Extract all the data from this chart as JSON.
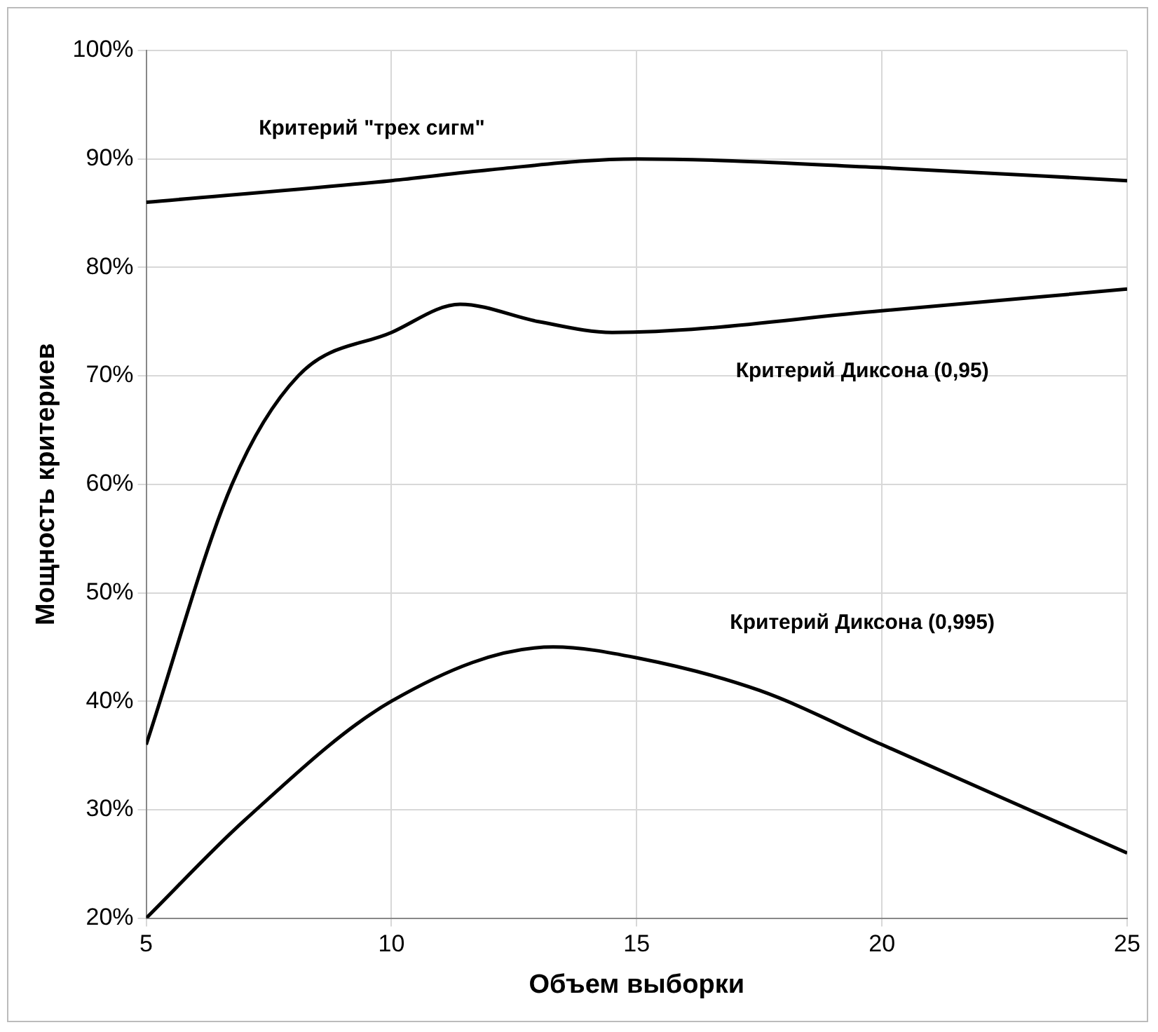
{
  "chart_data": {
    "type": "line",
    "xlabel": "Объем выборки",
    "ylabel": "Мощность критериев",
    "xlim": [
      5,
      25
    ],
    "xticks": [
      5,
      10,
      15,
      20,
      25
    ],
    "ylim": [
      0.2,
      1
    ],
    "yticks": [
      {
        "value": 0.2,
        "label": "20%"
      },
      {
        "value": 0.3,
        "label": "30%"
      },
      {
        "value": 0.4,
        "label": "40%"
      },
      {
        "value": 0.5,
        "label": "50%"
      },
      {
        "value": 0.6,
        "label": "60%"
      },
      {
        "value": 0.7,
        "label": "70%"
      },
      {
        "value": 0.8,
        "label": "80%"
      },
      {
        "value": 0.9,
        "label": "90%"
      },
      {
        "value": 1,
        "label": "100%"
      }
    ],
    "grid": true,
    "legend": false,
    "marker": "none",
    "line_style": "solid",
    "series": [
      {
        "name": "Критерий \"трех сигм\"",
        "color": "#000000",
        "x": [
          5,
          10,
          12,
          15,
          20,
          25
        ],
        "values": [
          0.86,
          0.88,
          0.89,
          0.9,
          0.892,
          0.88
        ]
      },
      {
        "name": "Критерий Диксона (0,95)",
        "color": "#000000",
        "x": [
          5,
          6.75,
          8.1,
          10,
          11.4,
          13,
          14.5,
          20,
          25
        ],
        "values": [
          0.36,
          0.6,
          0.7,
          0.74,
          0.766,
          0.75,
          0.74,
          0.76,
          0.78
        ]
      },
      {
        "name": "Критерий Диксона (0,995)",
        "color": "#000000",
        "x": [
          5,
          7,
          10,
          13.3,
          15,
          17.5,
          20,
          25
        ],
        "values": [
          0.2,
          0.29,
          0.4,
          0.45,
          0.44,
          0.41,
          0.36,
          0.26
        ]
      }
    ]
  }
}
